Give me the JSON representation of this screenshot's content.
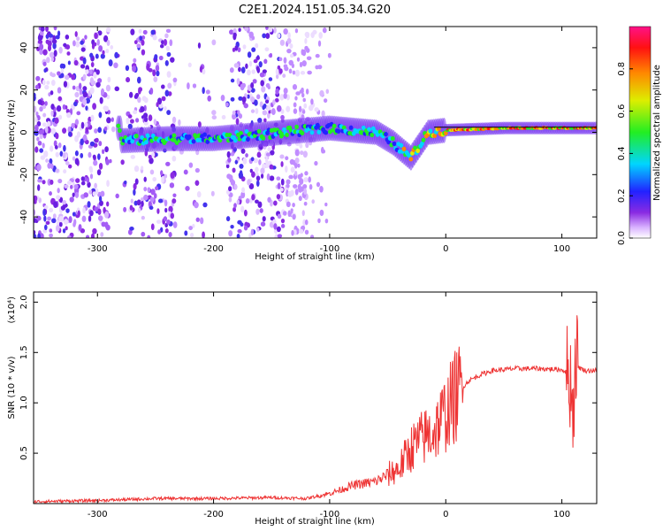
{
  "title": "C2E1.2024.151.05.34.G20",
  "colors": {
    "snr_line": "#ee3333",
    "frame": "#000000"
  },
  "chart_data": [
    {
      "type": "heatmap",
      "name": "spectrogram",
      "xlabel": "Height of straight line (km)",
      "ylabel": "Frequency (Hz)",
      "xlim": [
        -355,
        130
      ],
      "ylim": [
        -50,
        50
      ],
      "xticks": [
        -300,
        -200,
        -100,
        0,
        100
      ],
      "xtick_labels": [
        "-300",
        "-200",
        "-100",
        "0",
        "100"
      ],
      "yticks": [
        -40,
        -20,
        0,
        20,
        40
      ],
      "ytick_labels": [
        "-40",
        "-20",
        "0",
        "20",
        "40"
      ],
      "colorbar": {
        "label": "Normalized spectral amplitude",
        "range": [
          0,
          1
        ],
        "ticks": [
          0.0,
          0.2,
          0.4,
          0.6,
          0.8
        ],
        "tick_labels": [
          "0.0",
          "0.2",
          "0.4",
          "0.6",
          "0.8"
        ],
        "colormap": "rainbow (white→violet→blue→cyan→green→yellow→red→magenta)"
      },
      "features": {
        "broadband_noise_below_km": -120,
        "noise_gaps_km": [
          [
            -232,
            -188
          ],
          [
            -290,
            -272
          ]
        ],
        "carrier_track": [
          [
            -280,
            -4
          ],
          [
            -240,
            -3
          ],
          [
            -200,
            -3
          ],
          [
            -160,
            -1
          ],
          [
            -120,
            1
          ],
          [
            -100,
            2
          ],
          [
            -80,
            1
          ],
          [
            -60,
            0
          ],
          [
            -45,
            -5
          ],
          [
            -30,
            -12
          ],
          [
            -15,
            0
          ],
          [
            0,
            1
          ],
          [
            50,
            2
          ],
          [
            100,
            2
          ],
          [
            130,
            2
          ]
        ]
      }
    },
    {
      "type": "line",
      "name": "snr",
      "xlabel": "Height of straight line (km)",
      "ylabel": "SNR (10 * v/v)",
      "multiplier": "(x10⁴)",
      "xlim": [
        -355,
        130
      ],
      "ylim": [
        0,
        2.1
      ],
      "xticks": [
        -300,
        -200,
        -100,
        0,
        100
      ],
      "xtick_labels": [
        "-300",
        "-200",
        "-100",
        "0",
        "100"
      ],
      "yticks": [
        0.5,
        1.0,
        1.5,
        2.0
      ],
      "ytick_labels": [
        "0.5",
        "1.0",
        "1.5",
        "2.0"
      ],
      "series": [
        {
          "x": [
            -355,
            -300,
            -250,
            -200,
            -150,
            -120,
            -100,
            -80,
            -60,
            -40,
            -30,
            -20,
            -10,
            0,
            10,
            20,
            30,
            40,
            60,
            80,
            100,
            105,
            108,
            110,
            112,
            115,
            120,
            130
          ],
          "y": [
            0.02,
            0.03,
            0.05,
            0.05,
            0.06,
            0.05,
            0.1,
            0.18,
            0.22,
            0.35,
            0.55,
            0.65,
            0.72,
            0.9,
            1.1,
            1.22,
            1.28,
            1.32,
            1.34,
            1.34,
            1.33,
            1.3,
            1.2,
            0.9,
            1.5,
            1.35,
            1.32,
            1.32
          ]
        }
      ]
    }
  ]
}
